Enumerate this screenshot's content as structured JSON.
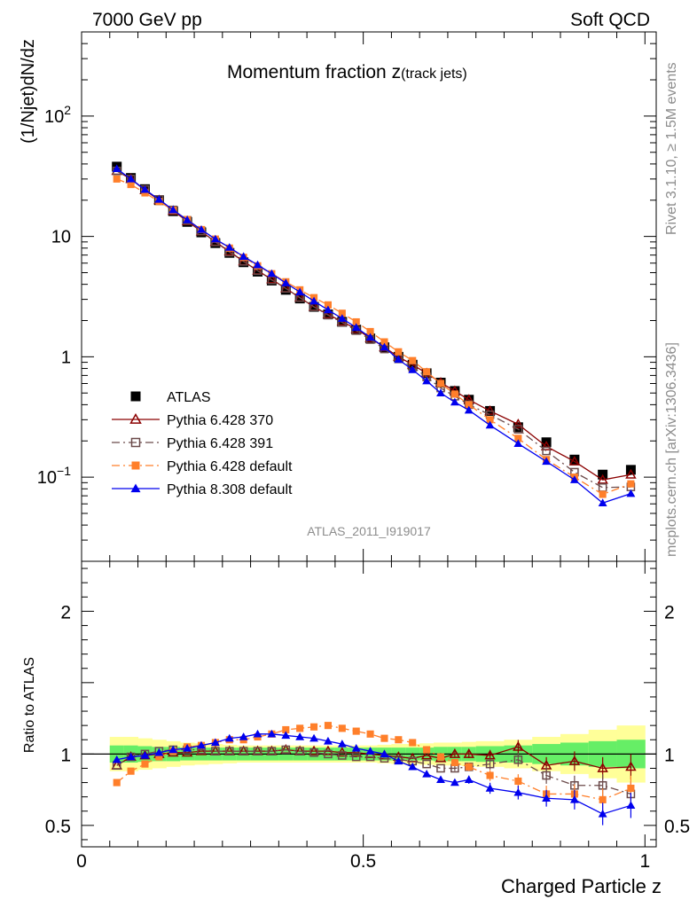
{
  "header": {
    "left": "7000 GeV pp",
    "right": "Soft QCD"
  },
  "side_text": {
    "top": "Rivet 3.1.10, ≥ 1.5M events",
    "bottom": "mcplots.cern.ch [arXiv:1306.3436]"
  },
  "chart_data": [
    {
      "type": "scatter",
      "title": "Momentum fraction z",
      "title_sub": "(track jets)",
      "ylabel": "(1/Njet)dN/dz",
      "yscale": "log",
      "ylim": [
        0.02,
        500
      ],
      "xlim": [
        0,
        1.02
      ],
      "ytick_labels": [
        "10−1",
        "1",
        "10",
        "102"
      ],
      "watermark": "ATLAS_2011_I919017",
      "x": [
        0.0625,
        0.0875,
        0.1125,
        0.1375,
        0.1625,
        0.1875,
        0.2125,
        0.2375,
        0.2625,
        0.2875,
        0.3125,
        0.3375,
        0.3625,
        0.3875,
        0.4125,
        0.4375,
        0.4625,
        0.4875,
        0.5125,
        0.5375,
        0.5625,
        0.5875,
        0.6125,
        0.6375,
        0.6625,
        0.6875,
        0.725,
        0.775,
        0.825,
        0.875,
        0.925,
        0.975
      ],
      "series": [
        {
          "name": "ATLAS",
          "color": "#000000",
          "marker": "square",
          "line": "none",
          "values": [
            38.0,
            30.6,
            24.7,
            20.0,
            16.2,
            13.2,
            10.8,
            8.8,
            7.3,
            6.1,
            5.1,
            4.3,
            3.6,
            3.05,
            2.6,
            2.25,
            1.95,
            1.68,
            1.42,
            1.2,
            1.0,
            0.86,
            0.73,
            0.61,
            0.52,
            0.44,
            0.355,
            0.26,
            0.195,
            0.14,
            0.105,
            0.115
          ]
        },
        {
          "name": "Pythia 6.428 370",
          "color": "#8b0000",
          "marker": "open-triangle",
          "line": "solid",
          "values": [
            35.0,
            30.0,
            24.2,
            20.0,
            16.3,
            13.4,
            11.0,
            9.0,
            7.5,
            6.2,
            5.2,
            4.4,
            3.7,
            3.1,
            2.6,
            2.25,
            1.96,
            1.7,
            1.43,
            1.2,
            1.0,
            0.86,
            0.73,
            0.61,
            0.52,
            0.44,
            0.355,
            0.275,
            0.18,
            0.135,
            0.095,
            0.105
          ]
        },
        {
          "name": "Pythia 6.428 391",
          "color": "#6b4a4a",
          "marker": "open-square",
          "line": "dashdot",
          "values": [
            35.0,
            30.0,
            24.5,
            20.3,
            16.6,
            13.6,
            11.1,
            9.0,
            7.4,
            6.2,
            5.2,
            4.35,
            3.7,
            3.1,
            2.6,
            2.22,
            1.93,
            1.65,
            1.39,
            1.16,
            0.96,
            0.82,
            0.68,
            0.55,
            0.47,
            0.4,
            0.33,
            0.25,
            0.165,
            0.11,
            0.082,
            0.083
          ]
        },
        {
          "name": "Pythia 6.428 default",
          "color": "#ff7f2a",
          "marker": "filled-square",
          "line": "dashdot",
          "values": [
            30.0,
            27.0,
            23.0,
            19.5,
            16.5,
            13.8,
            11.4,
            9.5,
            8.0,
            6.7,
            5.7,
            4.9,
            4.2,
            3.6,
            3.1,
            2.7,
            2.3,
            1.95,
            1.62,
            1.33,
            1.1,
            0.93,
            0.75,
            0.6,
            0.49,
            0.4,
            0.3,
            0.21,
            0.14,
            0.1,
            0.072,
            0.088
          ]
        },
        {
          "name": "Pythia 8.308 default",
          "color": "#0000ee",
          "marker": "filled-triangle",
          "line": "solid",
          "values": [
            36.5,
            30.0,
            24.5,
            20.3,
            16.6,
            13.7,
            11.4,
            9.5,
            8.1,
            6.8,
            5.8,
            4.9,
            4.1,
            3.45,
            2.9,
            2.45,
            2.08,
            1.75,
            1.45,
            1.2,
            0.95,
            0.78,
            0.63,
            0.5,
            0.42,
            0.36,
            0.27,
            0.19,
            0.135,
            0.095,
            0.061,
            0.073
          ]
        }
      ]
    },
    {
      "type": "scatter",
      "ylabel": "Ratio to ATLAS",
      "xlabel": "Charged Particle z",
      "ylim": [
        0.35,
        2.35
      ],
      "xlim": [
        0,
        1.02
      ],
      "ytick_labels": [
        "0.5",
        "1",
        "2"
      ],
      "xtick_labels": [
        "0",
        "0.5",
        "1"
      ],
      "band_green_halfwidth": [
        0.06,
        0.06,
        0.055,
        0.05,
        0.05,
        0.045,
        0.045,
        0.045,
        0.045,
        0.045,
        0.045,
        0.045,
        0.045,
        0.045,
        0.045,
        0.045,
        0.045,
        0.045,
        0.045,
        0.045,
        0.045,
        0.045,
        0.045,
        0.05,
        0.05,
        0.05,
        0.055,
        0.06,
        0.07,
        0.08,
        0.09,
        0.1
      ],
      "band_yellow_halfwidth": [
        0.12,
        0.12,
        0.11,
        0.1,
        0.09,
        0.08,
        0.075,
        0.07,
        0.065,
        0.06,
        0.06,
        0.06,
        0.06,
        0.06,
        0.06,
        0.06,
        0.06,
        0.06,
        0.06,
        0.065,
        0.07,
        0.07,
        0.075,
        0.08,
        0.08,
        0.085,
        0.09,
        0.1,
        0.12,
        0.14,
        0.17,
        0.2
      ],
      "series": [
        {
          "name": "Pythia 6.428 370",
          "values": [
            0.92,
            0.98,
            0.99,
            1.0,
            1.01,
            1.01,
            1.02,
            1.02,
            1.02,
            1.02,
            1.02,
            1.02,
            1.03,
            1.02,
            1.02,
            1.02,
            1.01,
            1.01,
            1.0,
            0.99,
            0.98,
            0.97,
            0.99,
            0.97,
            1.0,
            1.0,
            0.99,
            1.05,
            0.92,
            0.95,
            0.9,
            0.91
          ]
        },
        {
          "name": "Pythia 6.428 391",
          "values": [
            0.92,
            0.98,
            1.0,
            1.02,
            1.03,
            1.03,
            1.03,
            1.02,
            1.02,
            1.02,
            1.02,
            1.02,
            1.03,
            1.02,
            1.01,
            1.0,
            0.99,
            0.98,
            0.98,
            0.97,
            0.96,
            0.95,
            0.93,
            0.9,
            0.9,
            0.91,
            0.93,
            0.96,
            0.85,
            0.78,
            0.78,
            0.72
          ]
        },
        {
          "name": "Pythia 6.428 default",
          "values": [
            0.8,
            0.88,
            0.93,
            0.98,
            1.02,
            1.05,
            1.06,
            1.08,
            1.1,
            1.1,
            1.12,
            1.14,
            1.17,
            1.18,
            1.19,
            1.2,
            1.18,
            1.16,
            1.14,
            1.11,
            1.1,
            1.08,
            1.03,
            0.98,
            0.94,
            0.91,
            0.85,
            0.81,
            0.72,
            0.72,
            0.68,
            0.76
          ]
        },
        {
          "name": "Pythia 8.308 default",
          "values": [
            0.96,
            0.98,
            0.99,
            1.01,
            1.03,
            1.04,
            1.06,
            1.08,
            1.11,
            1.12,
            1.14,
            1.14,
            1.13,
            1.12,
            1.11,
            1.09,
            1.07,
            1.04,
            1.02,
            1.0,
            0.95,
            0.91,
            0.86,
            0.82,
            0.8,
            0.82,
            0.76,
            0.73,
            0.69,
            0.68,
            0.58,
            0.64
          ]
        }
      ]
    }
  ]
}
